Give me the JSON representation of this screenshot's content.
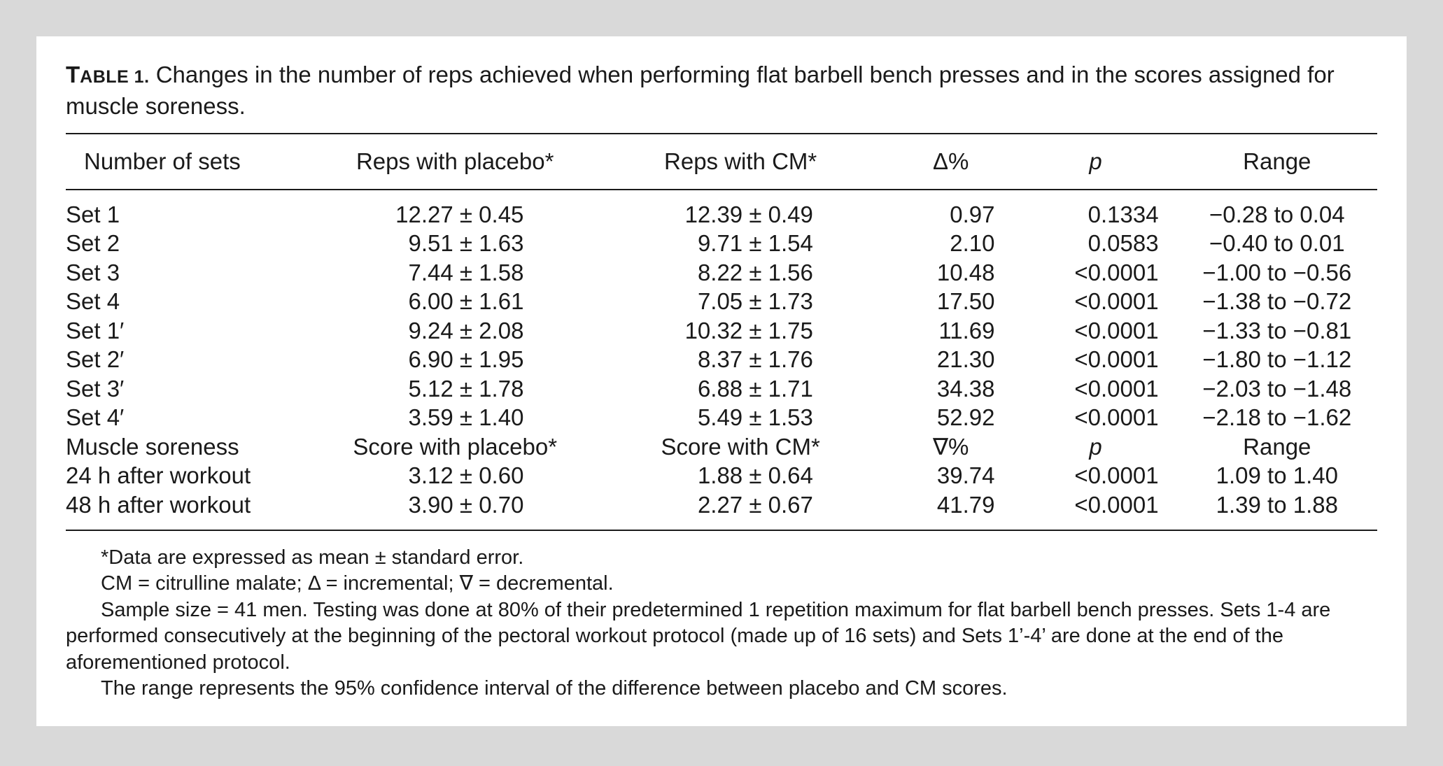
{
  "caption": {
    "label_main": "T",
    "label_small": "ABLE 1.",
    "text": " Changes in the number of reps achieved when performing flat barbell bench presses and in the scores assigned for muscle soreness."
  },
  "columns": [
    "Number of sets",
    "Reps with placebo*",
    "Reps with CM*",
    "Δ%",
    "p",
    "Range"
  ],
  "rows": [
    [
      "Set 1",
      "12.27 ± 0.45",
      "12.39 ± 0.49",
      "0.97",
      "0.1334",
      "−0.28 to 0.04"
    ],
    [
      "Set 2",
      "9.51 ± 1.63",
      "9.71 ± 1.54",
      "2.10",
      "0.0583",
      "−0.40 to 0.01"
    ],
    [
      "Set 3",
      "7.44 ± 1.58",
      "8.22 ± 1.56",
      "10.48",
      "<0.0001",
      "−1.00 to −0.56"
    ],
    [
      "Set 4",
      "6.00 ± 1.61",
      "7.05 ± 1.73",
      "17.50",
      "<0.0001",
      "−1.38 to −0.72"
    ],
    [
      "Set 1′",
      "9.24 ± 2.08",
      "10.32 ± 1.75",
      "11.69",
      "<0.0001",
      "−1.33 to −0.81"
    ],
    [
      "Set 2′",
      "6.90 ± 1.95",
      "8.37 ± 1.76",
      "21.30",
      "<0.0001",
      "−1.80 to −1.12"
    ],
    [
      "Set 3′",
      "5.12 ± 1.78",
      "6.88 ± 1.71",
      "34.38",
      "<0.0001",
      "−2.03 to −1.48"
    ],
    [
      "Set 4′",
      "3.59 ± 1.40",
      "5.49 ± 1.53",
      "52.92",
      "<0.0001",
      "−2.18 to −1.62"
    ]
  ],
  "subheader": [
    "Muscle soreness",
    "Score with placebo*",
    "Score with CM*",
    "∇%",
    "p",
    "Range"
  ],
  "soreness_rows": [
    [
      "24 h after workout",
      "3.12 ± 0.60",
      "1.88 ± 0.64",
      "39.74",
      "<0.0001",
      "1.09 to 1.40"
    ],
    [
      "48 h after workout",
      "3.90 ± 0.70",
      "2.27 ± 0.67",
      "41.79",
      "<0.0001",
      "1.39 to 1.88"
    ]
  ],
  "notes": [
    "*Data are expressed as mean ± standard error.",
    "CM = citrulline malate; Δ = incremental; ∇ = decremental.",
    "Sample size = 41 men. Testing was done at 80% of their predetermined 1 repetition maximum for flat barbell bench presses. Sets 1-4 are performed consecutively at the beginning of the pectoral workout protocol (made up of 16 sets) and Sets 1’-4’ are done at the end of the aforementioned protocol.",
    "The range represents the 95% confidence interval of the difference between placebo and CM scores."
  ]
}
